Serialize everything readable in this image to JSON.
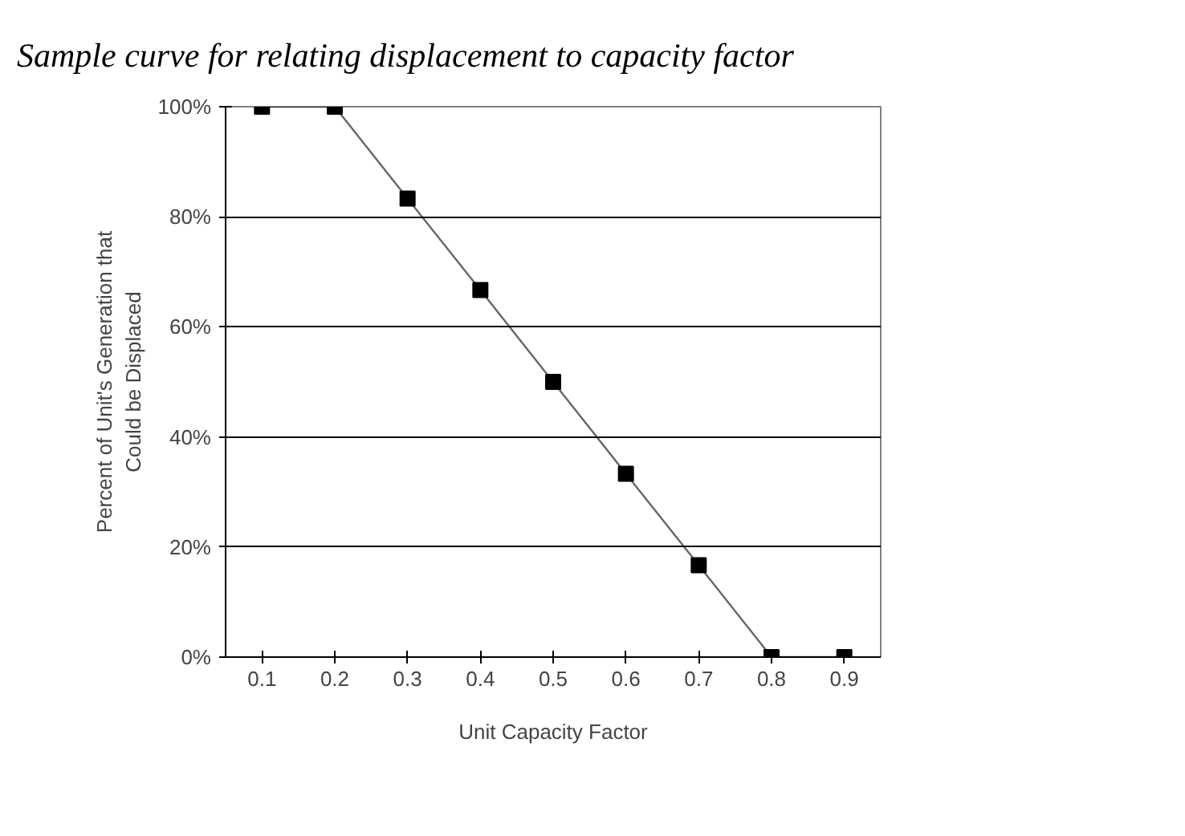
{
  "chart_data": {
    "type": "line",
    "title": "Sample curve for relating displacement to capacity factor",
    "xlabel": "Unit Capacity Factor",
    "ylabel": "Percent of Unit's Generation that\nCould be Displaced",
    "categories": [
      "0.1",
      "0.2",
      "0.3",
      "0.4",
      "0.5",
      "0.6",
      "0.7",
      "0.8",
      "0.9"
    ],
    "series": [
      {
        "color": "#000000",
        "values": [
          100,
          100,
          83.3,
          66.7,
          50,
          33.3,
          16.7,
          0,
          0
        ]
      }
    ],
    "ylim": [
      0,
      100
    ],
    "yticks": [
      {
        "value": 0,
        "label": "0%"
      },
      {
        "value": 20,
        "label": "20%"
      },
      {
        "value": 40,
        "label": "40%"
      },
      {
        "value": 60,
        "label": "60%"
      },
      {
        "value": 80,
        "label": "80%"
      },
      {
        "value": 100,
        "label": "100%"
      }
    ],
    "grid": "y",
    "marker": "square",
    "line_style": "solid"
  }
}
